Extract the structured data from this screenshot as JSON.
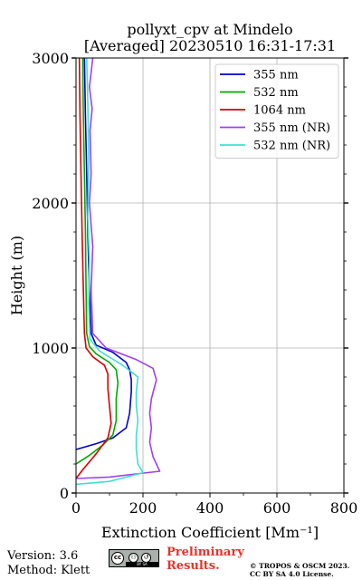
{
  "title_line1": "pollyxt_cpv at Mindelo",
  "title_line2": "[Averaged] 20230510 16:31-17:31",
  "chart_data": {
    "type": "line",
    "xlabel": "Extinction Coefficient [Mm⁻¹]",
    "ylabel": "Height (m)",
    "xlim": [
      0,
      800
    ],
    "ylim": [
      0,
      3000
    ],
    "xticks": [
      0,
      200,
      400,
      600,
      800
    ],
    "yticks": [
      0,
      1000,
      2000,
      3000
    ],
    "grid": true,
    "legend_position": "top-right",
    "series": [
      {
        "name": "355 nm",
        "color": "#0000cc",
        "x": [
          0,
          60,
          110,
          150,
          160,
          165,
          165,
          160,
          150,
          110,
          60,
          45,
          40,
          35,
          32,
          28,
          25
        ],
        "y": [
          300,
          340,
          380,
          450,
          550,
          700,
          780,
          850,
          900,
          970,
          1020,
          1100,
          1400,
          1800,
          2200,
          2600,
          3000
        ]
      },
      {
        "name": "532 nm",
        "color": "#00aa00",
        "x": [
          0,
          40,
          80,
          110,
          120,
          120,
          125,
          120,
          100,
          60,
          40,
          32,
          30,
          28,
          25,
          22,
          20
        ],
        "y": [
          200,
          260,
          330,
          400,
          500,
          650,
          760,
          850,
          900,
          960,
          1010,
          1100,
          1400,
          1800,
          2200,
          2600,
          3000
        ]
      },
      {
        "name": "1064 nm",
        "color": "#dd0000",
        "x": [
          0,
          20,
          60,
          95,
          105,
          100,
          95,
          95,
          85,
          50,
          30,
          25,
          22,
          18,
          15,
          12,
          10
        ],
        "y": [
          100,
          160,
          270,
          380,
          480,
          600,
          720,
          820,
          880,
          940,
          1000,
          1100,
          1400,
          1800,
          2200,
          2600,
          3000
        ]
      },
      {
        "name": "355 nm (NR)",
        "color": "#a040f0",
        "x": [
          0,
          100,
          250,
          230,
          220,
          225,
          220,
          225,
          240,
          230,
          180,
          90,
          50,
          45,
          50,
          40,
          45,
          42,
          48,
          40,
          45,
          50
        ],
        "y": [
          100,
          110,
          150,
          250,
          350,
          450,
          550,
          650,
          780,
          860,
          920,
          1000,
          1100,
          1400,
          1700,
          2000,
          2200,
          2500,
          2650,
          2800,
          2900,
          3000
        ]
      },
      {
        "name": "532 nm (NR)",
        "color": "#40e0d0",
        "x": [
          0,
          100,
          200,
          185,
          180,
          180,
          185,
          180,
          180,
          185,
          140,
          70,
          42,
          38,
          40,
          35,
          38,
          35,
          32
        ],
        "y": [
          60,
          80,
          140,
          200,
          300,
          400,
          500,
          600,
          700,
          800,
          880,
          980,
          1060,
          1300,
          1600,
          1900,
          2300,
          2700,
          3000
        ]
      }
    ]
  },
  "footer": {
    "version": "Version: 3.6",
    "method": "Method: Klett",
    "prelim_line1": "Preliminary",
    "prelim_line2": "Results.",
    "copyright_line1": "© TROPOS & OSCM 2023.",
    "copyright_line2": "CC BY SA 4.0 License."
  }
}
